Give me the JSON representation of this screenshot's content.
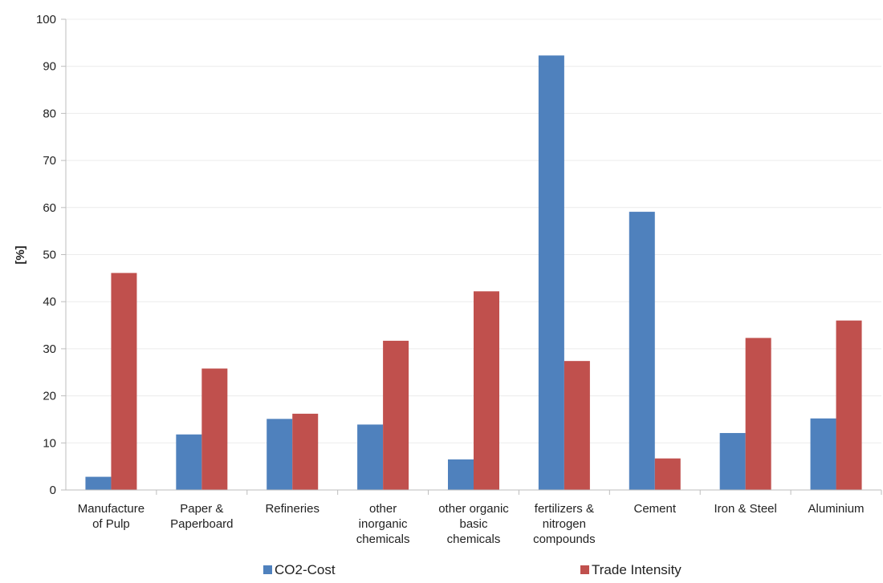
{
  "chart_data": {
    "type": "bar",
    "title": "",
    "xlabel": "",
    "ylabel": "[%]",
    "ylim": [
      0,
      100
    ],
    "yticks": [
      0,
      10,
      20,
      30,
      40,
      50,
      60,
      70,
      80,
      90,
      100
    ],
    "grid": true,
    "legend_position": "bottom",
    "categories": [
      [
        "Manufacture",
        "of Pulp"
      ],
      [
        "Paper &",
        "Paperboard"
      ],
      [
        "Refineries"
      ],
      [
        "other",
        "inorganic",
        "chemicals"
      ],
      [
        "other organic",
        "basic",
        "chemicals"
      ],
      [
        "fertilizers &",
        "nitrogen",
        "compounds"
      ],
      [
        "Cement"
      ],
      [
        "Iron & Steel"
      ],
      [
        "Aluminium"
      ]
    ],
    "series": [
      {
        "name": "CO2-Cost",
        "color": "#4f81bd",
        "values": [
          2.8,
          11.8,
          15.1,
          13.9,
          6.5,
          92.3,
          59.1,
          12.1,
          15.2
        ]
      },
      {
        "name": "Trade Intensity",
        "color": "#c0504d",
        "values": [
          46.1,
          25.8,
          16.2,
          31.7,
          42.2,
          27.4,
          6.7,
          32.3,
          36.0
        ]
      }
    ]
  }
}
